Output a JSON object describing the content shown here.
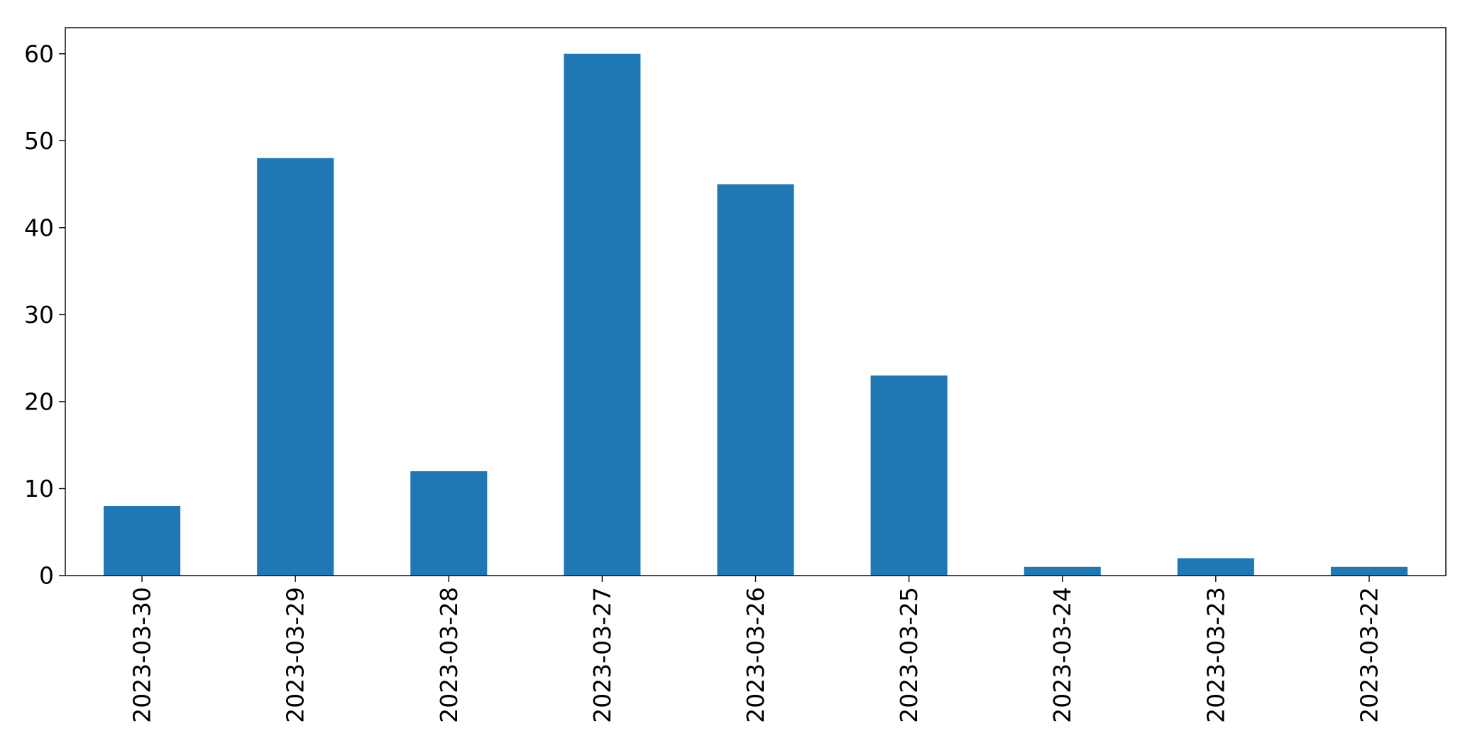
{
  "chart_data": {
    "type": "bar",
    "title": "",
    "xlabel": "",
    "ylabel": "",
    "categories": [
      "2023-03-30",
      "2023-03-29",
      "2023-03-28",
      "2023-03-27",
      "2023-03-26",
      "2023-03-25",
      "2023-03-24",
      "2023-03-23",
      "2023-03-22"
    ],
    "values": [
      8,
      48,
      12,
      60,
      45,
      23,
      1,
      2,
      1
    ],
    "ylim": [
      0,
      63
    ],
    "yticks": [
      0,
      10,
      20,
      30,
      40,
      50,
      60
    ],
    "x_tick_rotation": "vertical",
    "grid": false,
    "legend": "none",
    "bar_color": "#1f77b4"
  }
}
